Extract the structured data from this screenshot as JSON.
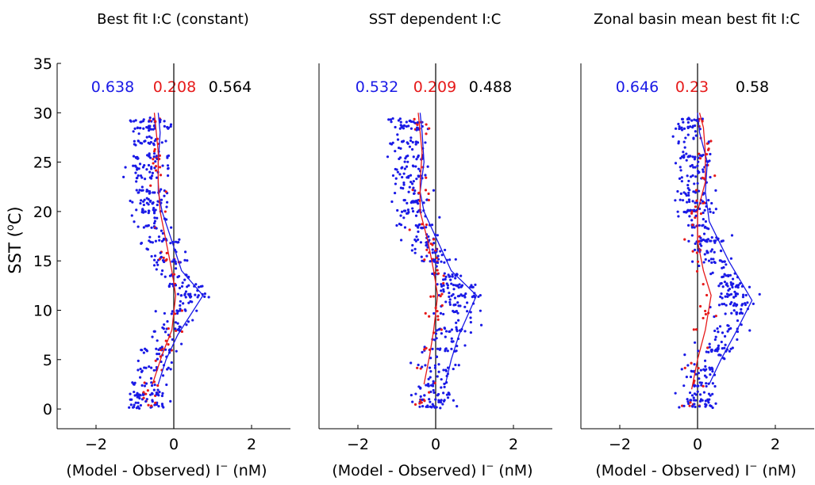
{
  "shared": {
    "y_axis_label_prefix": "SST (",
    "y_axis_label_sup": "o",
    "y_axis_label_suffix": "C)",
    "x_axis_label_prefix": "(Model - Observed) I",
    "x_axis_label_sup": "−",
    "x_axis_label_suffix": " (nM)",
    "xlim": [
      -3,
      3
    ],
    "ylim": [
      -2,
      35
    ],
    "x_ticks": [
      -2,
      0,
      2
    ],
    "y_ticks": [
      0,
      5,
      10,
      15,
      20,
      25,
      30,
      35
    ],
    "colors": {
      "blue": "#1a1ae6",
      "red": "#e61a1a",
      "black": "#000000"
    }
  },
  "chart_data": [
    {
      "type": "scatter",
      "title": "Best fit I:C (constant)",
      "stats": [
        "0.638",
        "0.208",
        "0.564"
      ],
      "series": [
        {
          "color": "blue",
          "kind": "median-line",
          "points": [
            [
              -0.4,
              2.5
            ],
            [
              -0.2,
              5
            ],
            [
              0.1,
              7.5
            ],
            [
              0.75,
              11.5
            ],
            [
              0.2,
              14
            ],
            [
              -0.05,
              17
            ],
            [
              -0.3,
              20
            ],
            [
              -0.4,
              22
            ],
            [
              -0.4,
              25
            ],
            [
              -0.35,
              28
            ],
            [
              -0.4,
              30
            ]
          ]
        },
        {
          "color": "red",
          "kind": "median-line",
          "points": [
            [
              -0.55,
              2.5
            ],
            [
              -0.3,
              5.5
            ],
            [
              -0.05,
              8
            ],
            [
              0.05,
              11.5
            ],
            [
              -0.05,
              14
            ],
            [
              -0.2,
              17
            ],
            [
              -0.35,
              20
            ],
            [
              -0.4,
              23
            ],
            [
              -0.4,
              26
            ],
            [
              -0.5,
              30
            ]
          ]
        }
      ]
    },
    {
      "type": "scatter",
      "title": "SST dependent I:C",
      "stats": [
        "0.532",
        "0.209",
        "0.488"
      ],
      "series": [
        {
          "color": "blue",
          "kind": "median-line",
          "points": [
            [
              0.25,
              2.5
            ],
            [
              0.4,
              5
            ],
            [
              0.6,
              7.5
            ],
            [
              1.05,
              11.5
            ],
            [
              0.4,
              14
            ],
            [
              0.05,
              17
            ],
            [
              -0.3,
              20
            ],
            [
              -0.4,
              22
            ],
            [
              -0.3,
              25
            ],
            [
              -0.35,
              28
            ],
            [
              -0.4,
              30
            ]
          ]
        },
        {
          "color": "red",
          "kind": "median-line",
          "points": [
            [
              -0.3,
              2.5
            ],
            [
              -0.15,
              5.5
            ],
            [
              -0.05,
              8
            ],
            [
              0.05,
              11.5
            ],
            [
              -0.05,
              14
            ],
            [
              -0.2,
              17
            ],
            [
              -0.4,
              20
            ],
            [
              -0.4,
              23
            ],
            [
              -0.35,
              26
            ],
            [
              -0.45,
              30
            ]
          ]
        }
      ]
    },
    {
      "type": "scatter",
      "title": "Zonal basin mean best fit I:C",
      "stats": [
        "0.646",
        "0.23",
        "0.58"
      ],
      "series": [
        {
          "color": "blue",
          "kind": "median-line",
          "points": [
            [
              0.3,
              2.5
            ],
            [
              0.6,
              5
            ],
            [
              0.95,
              7.5
            ],
            [
              1.4,
              11
            ],
            [
              0.8,
              15
            ],
            [
              0.3,
              19
            ],
            [
              0.2,
              22
            ],
            [
              0.25,
              25
            ],
            [
              0.05,
              28
            ],
            [
              0.0,
              30
            ]
          ]
        },
        {
          "color": "red",
          "kind": "median-line",
          "points": [
            [
              -0.15,
              2
            ],
            [
              0.0,
              5
            ],
            [
              0.2,
              8
            ],
            [
              0.35,
              11.5
            ],
            [
              0.15,
              14
            ],
            [
              0.0,
              17
            ],
            [
              0.0,
              20
            ],
            [
              0.2,
              23
            ],
            [
              0.2,
              26
            ],
            [
              0.15,
              28.5
            ],
            [
              0.05,
              30
            ]
          ]
        }
      ]
    }
  ]
}
